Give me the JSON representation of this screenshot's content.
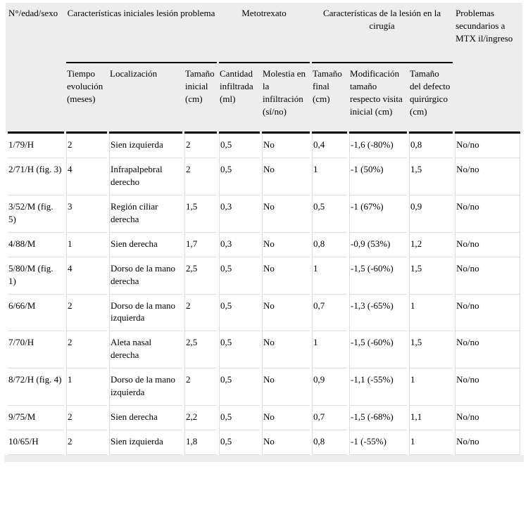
{
  "colors": {
    "header_bg": "#ededed",
    "footer_bg": "#ededed",
    "heavy_rule": "#000000",
    "grid_line": "#dddddd",
    "text": "#000000"
  },
  "table": {
    "col1_header": "N°/edad/sexo",
    "col10_header": "Problemas secundarios a MTX il/ingreso",
    "groups": [
      {
        "label": "Características iniciales lesión problema",
        "span": 3
      },
      {
        "label": "Metotrexato",
        "span": 2
      },
      {
        "label": "Características de la lesión en la cirugía",
        "span": 3
      }
    ],
    "subheaders": [
      "Tiempo evolución (meses)",
      "Localización",
      "Tamaño inicial (cm)",
      "Cantidad infiltrada (ml)",
      "Molestia en la infiltración (sí/no)",
      "Tamaño final (cm)",
      "Modificación tamaño respecto visita inicial (cm)",
      "Tamaño del defecto quirúrgico (cm)"
    ],
    "rows": [
      [
        "1/79/H",
        "2",
        "Sien izquierda",
        "2",
        "0,5",
        "No",
        "0,4",
        "-1,6 (-80%)",
        "0,8",
        "No/no"
      ],
      [
        "2/71/H (fig. 3)",
        "4",
        "Infrapalpebral derecho",
        "2",
        "0,5",
        "No",
        "1",
        "-1 (50%)",
        "1,5",
        "No/no"
      ],
      [
        "3/52/M (fig. 5)",
        "3",
        "Región ciliar derecha",
        "1,5",
        "0,3",
        "No",
        "0,5",
        "-1 (67%)",
        "0,9",
        "No/no"
      ],
      [
        "4/88/M",
        "1",
        "Sien derecha",
        "1,7",
        "0,3",
        "No",
        "0,8",
        "-0,9 (53%)",
        "1,2",
        "No/no"
      ],
      [
        "5/80/M (fig. 1)",
        "4",
        "Dorso de la mano derecha",
        "2,5",
        "0,5",
        "No",
        "1",
        "-1,5 (-60%)",
        "1,5",
        "No/no"
      ],
      [
        "6/66/M",
        "2",
        "Dorso de la mano izquierda",
        "2",
        "0,5",
        "No",
        "0,7",
        "-1,3 (-65%)",
        "1",
        "No/no"
      ],
      [
        "7/70/H",
        "2",
        "Aleta nasal derecha",
        "2,5",
        "0,5",
        "No",
        "1",
        "-1,5 (-60%)",
        "1,5",
        "No/no"
      ],
      [
        "8/72/H (fig. 4)",
        "1",
        "Dorso de la mano izquierda",
        "2",
        "0,5",
        "No",
        "0,9",
        "-1,1 (-55%)",
        "1",
        "No/no"
      ],
      [
        "9/75/M",
        "2",
        "Sien derecha",
        "2,2",
        "0,5",
        "No",
        "0,7",
        "-1,5 (-68%)",
        "1,1",
        "No/no"
      ],
      [
        "10/65/H",
        "2",
        "Sien izquierda",
        "1,8",
        "0,5",
        "No",
        "0,8",
        "-1 (-55%)",
        "1",
        "No/no"
      ]
    ]
  }
}
